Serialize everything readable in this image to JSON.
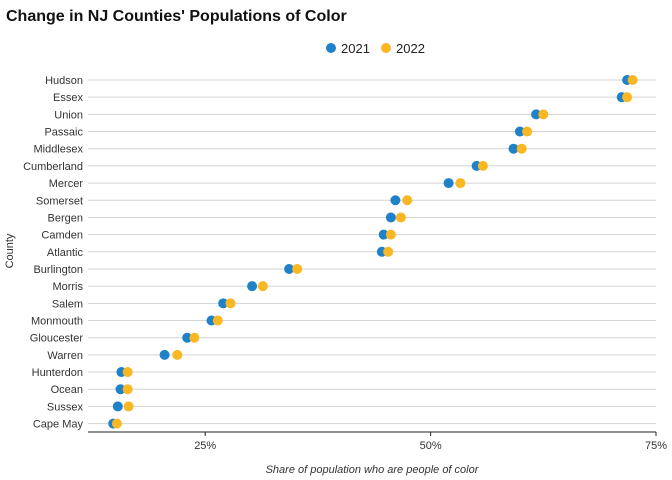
{
  "chart_data": {
    "type": "scatter",
    "subtype": "dumbbell-dot-plot",
    "title": "Change in NJ Counties' Populations of Color",
    "xlabel": "Share of population who are people of color",
    "ylabel": "County",
    "xlim": [
      0.12,
      0.75
    ],
    "x_ticks": [
      0.25,
      0.5,
      0.75
    ],
    "x_tick_labels": [
      "25%",
      "50%",
      "75%"
    ],
    "legend_position": "top-center",
    "grid": "horizontal",
    "categories": [
      "Hudson",
      "Essex",
      "Union",
      "Passaic",
      "Middlesex",
      "Cumberland",
      "Mercer",
      "Somerset",
      "Bergen",
      "Camden",
      "Atlantic",
      "Burlington",
      "Morris",
      "Salem",
      "Monmouth",
      "Gloucester",
      "Warren",
      "Hunterdon",
      "Ocean",
      "Sussex",
      "Cape May"
    ],
    "series": [
      {
        "name": "2021",
        "color": "#1f82c8",
        "values": [
          0.718,
          0.712,
          0.617,
          0.599,
          0.592,
          0.551,
          0.52,
          0.461,
          0.456,
          0.448,
          0.446,
          0.343,
          0.302,
          0.27,
          0.257,
          0.23,
          0.205,
          0.157,
          0.156,
          0.153,
          0.148
        ]
      },
      {
        "name": "2022",
        "color": "#f9b823",
        "values": [
          0.724,
          0.718,
          0.625,
          0.607,
          0.601,
          0.558,
          0.533,
          0.474,
          0.467,
          0.456,
          0.453,
          0.352,
          0.314,
          0.278,
          0.264,
          0.238,
          0.219,
          0.164,
          0.164,
          0.165,
          0.152
        ]
      }
    ]
  }
}
